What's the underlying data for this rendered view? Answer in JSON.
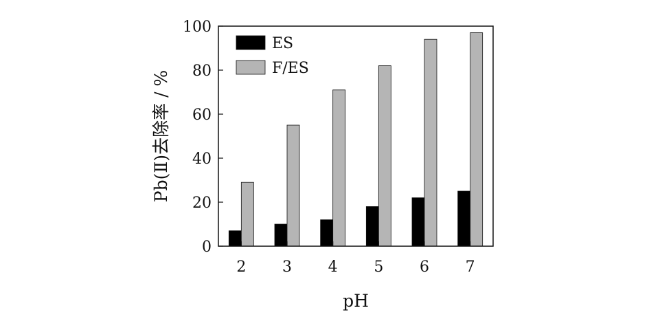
{
  "chart_data": {
    "type": "bar",
    "categories": [
      "2",
      "3",
      "4",
      "5",
      "6",
      "7"
    ],
    "series": [
      {
        "name": "ES",
        "values": [
          7,
          10,
          12,
          18,
          22,
          25
        ]
      },
      {
        "name": "F/ES",
        "values": [
          29,
          55,
          71,
          82,
          94,
          97
        ]
      }
    ],
    "title": "",
    "xlabel": "pH",
    "ylabel": "Pb(Ⅱ)去除率 / %",
    "ylim": [
      0,
      100
    ],
    "yticks": [
      "0",
      "20",
      "40",
      "60",
      "80",
      "100"
    ],
    "grid": false,
    "legend_position": "top-left",
    "colors": {
      "ES": "#000000",
      "F/ES": "#b5b5b5"
    }
  }
}
